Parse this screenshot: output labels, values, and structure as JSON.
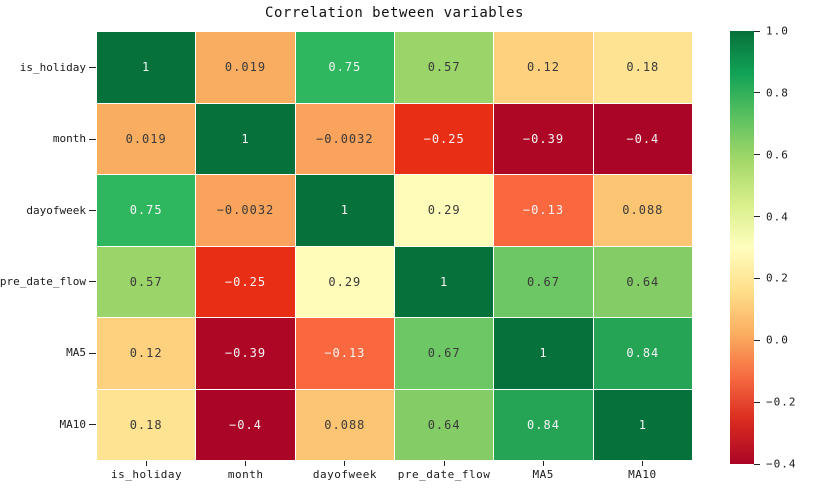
{
  "title": "Correlation between variables",
  "chart_data": {
    "type": "heatmap",
    "title": "Correlation between variables",
    "x_categories": [
      "is_holiday",
      "month",
      "dayofweek",
      "pre_date_flow",
      "MA5",
      "MA10"
    ],
    "y_categories": [
      "is_holiday",
      "month",
      "dayofweek",
      "pre_date_flow",
      "MA5",
      "MA10"
    ],
    "matrix": [
      [
        1,
        0.019,
        0.75,
        0.57,
        0.12,
        0.18
      ],
      [
        0.019,
        1,
        -0.0032,
        -0.25,
        -0.39,
        -0.4
      ],
      [
        0.75,
        -0.0032,
        1,
        0.29,
        -0.13,
        0.088
      ],
      [
        0.57,
        -0.25,
        0.29,
        1,
        0.67,
        0.64
      ],
      [
        0.12,
        -0.39,
        -0.13,
        0.67,
        1,
        0.84
      ],
      [
        0.18,
        -0.4,
        0.088,
        0.64,
        0.84,
        1
      ]
    ],
    "cell_labels": [
      [
        "1",
        "0.019",
        "0.75",
        "0.57",
        "0.12",
        "0.18"
      ],
      [
        "0.019",
        "1",
        "−0.0032",
        "−0.25",
        "−0.39",
        "−0.4"
      ],
      [
        "0.75",
        "−0.0032",
        "1",
        "0.29",
        "−0.13",
        "0.088"
      ],
      [
        "0.57",
        "−0.25",
        "0.29",
        "1",
        "0.67",
        "0.64"
      ],
      [
        "0.12",
        "−0.39",
        "−0.13",
        "0.67",
        "1",
        "0.84"
      ],
      [
        "0.18",
        "−0.4",
        "0.088",
        "0.64",
        "0.84",
        "1"
      ]
    ],
    "cell_colors": [
      [
        "#06713a",
        "#f9ad61",
        "#2eb75f",
        "#9bd56a",
        "#fdd17e",
        "#fde392"
      ],
      [
        "#f9ad61",
        "#06713a",
        "#f9a35c",
        "#e92e16",
        "#ae0726",
        "#aa0526"
      ],
      [
        "#2eb75f",
        "#f9a35c",
        "#06713a",
        "#fffcba",
        "#f9683f",
        "#fcc574"
      ],
      [
        "#9bd56a",
        "#e92e16",
        "#fffcba",
        "#06713a",
        "#6ec765",
        "#83cc66"
      ],
      [
        "#fdd17e",
        "#ae0726",
        "#f9683f",
        "#6ec765",
        "#06713a",
        "#25a456"
      ],
      [
        "#fde392",
        "#aa0526",
        "#fcc574",
        "#83cc66",
        "#25a456",
        "#06713a"
      ]
    ],
    "colormap": "RdYlGn",
    "vmin": -0.4,
    "vmax": 1.0,
    "grid_line_color": "#ffffff",
    "annotation_dark_text": "#3a3a3a",
    "annotation_light_text": "#f5f5f5",
    "colorbar": {
      "position": "right",
      "tick_labels": [
        "1.0",
        "0.8",
        "0.6",
        "0.4",
        "0.2",
        "0.0",
        "−0.2",
        "−0.4"
      ],
      "gradient_bottom_to_top": [
        "#aa0526",
        "#d92b20",
        "#f66a40",
        "#fbad60",
        "#fedf8a",
        "#fffebe",
        "#d8ef8b",
        "#a4d869",
        "#5cc160",
        "#12a356",
        "#06713a"
      ]
    }
  }
}
